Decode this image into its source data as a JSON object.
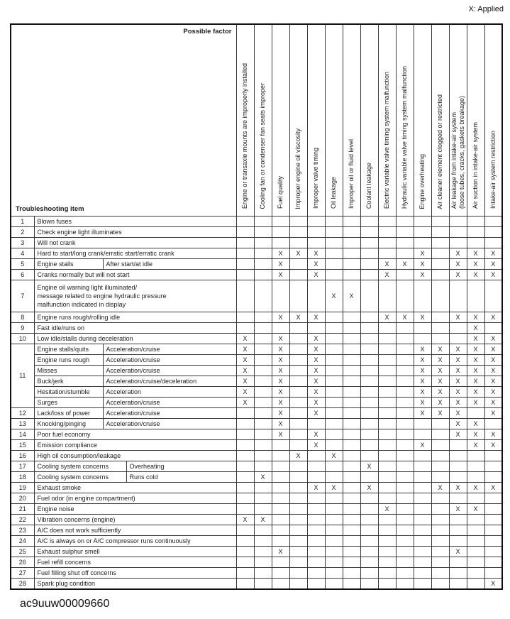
{
  "page": {
    "legend": "X: Applied",
    "caption": "ac9uuw00009660"
  },
  "table": {
    "corner": {
      "top_label": "Possible factor",
      "bottom_label": "Troubleshooting item"
    },
    "mark": "X",
    "factors": [
      {
        "label": "Engine or transaxle mounts are improperly installed"
      },
      {
        "label": "Cooling fan or condenser fan seats improper"
      },
      {
        "label": "Fuel quality"
      },
      {
        "label": "Improper engine oil viscosity"
      },
      {
        "label": "Improper valve timing"
      },
      {
        "label": "Oil leakage"
      },
      {
        "label": "Improper oil or fluid level"
      },
      {
        "label": "Coolant leakage"
      },
      {
        "label": "Electric variable valve timing system malfunction"
      },
      {
        "label": "Hydraulic variable valve timing system malfunction"
      },
      {
        "label": "Engine overheating"
      },
      {
        "label": "Air cleaner element clogged or restricted"
      },
      {
        "label": "Air leakage from intake-air system\n(loose tubes, cracks, gaskets breakage)"
      },
      {
        "label": "Air suction in intake-air system"
      },
      {
        "label": "Intake-air system restriction"
      }
    ],
    "rows": [
      {
        "num": "1",
        "item": "Blown fuses",
        "split": "none",
        "marks": []
      },
      {
        "num": "2",
        "item": "Check engine light illuminates",
        "split": "none",
        "marks": []
      },
      {
        "num": "3",
        "item": "Will not crank",
        "split": "none",
        "marks": []
      },
      {
        "num": "4",
        "item": "Hard to start/long crank/erratic start/erratic crank",
        "split": "none",
        "marks": [
          3,
          4,
          5,
          11,
          13,
          14,
          15
        ]
      },
      {
        "num": "5",
        "item": "Engine stalls",
        "sub": "After start/at idle",
        "split": "narrow",
        "marks": [
          3,
          5,
          9,
          10,
          11,
          13,
          14,
          15
        ]
      },
      {
        "num": "6",
        "item": "Cranks normally but will not start",
        "split": "none",
        "marks": [
          3,
          5,
          9,
          11,
          13,
          14,
          15
        ]
      },
      {
        "num": "7",
        "item": "Engine oil warning light illuminated/\nmessage related to engine hydraulic pressure\nmalfunction indicated in display",
        "split": "none",
        "tall": true,
        "marks": [
          6,
          7
        ]
      },
      {
        "num": "8",
        "item": "Engine runs rough/rolling idle",
        "split": "none",
        "marks": [
          3,
          4,
          5,
          9,
          10,
          11,
          13,
          14,
          15
        ]
      },
      {
        "num": "9",
        "item": "Fast idle/runs on",
        "split": "none",
        "marks": [
          14
        ]
      },
      {
        "num": "10",
        "item": "Low idle/stalls during deceleration",
        "split": "none",
        "marks": [
          1,
          3,
          5,
          14,
          15
        ]
      },
      {
        "num": "11",
        "num_rowspan": 6,
        "item": "Engine stalls/quits",
        "sub": "Acceleration/cruise",
        "split": "narrow",
        "marks": [
          1,
          3,
          5,
          11,
          12,
          13,
          14,
          15
        ]
      },
      {
        "no_num": true,
        "item": "Engine runs rough",
        "sub": "Acceleration/cruise",
        "split": "narrow",
        "marks": [
          1,
          3,
          5,
          11,
          12,
          13,
          14,
          15
        ]
      },
      {
        "no_num": true,
        "item": "Misses",
        "sub": "Acceleration/cruise",
        "split": "narrow",
        "marks": [
          1,
          3,
          5,
          11,
          12,
          13,
          14,
          15
        ]
      },
      {
        "no_num": true,
        "item": "Buck/jerk",
        "sub": "Acceleration/cruise/deceleration",
        "split": "narrow",
        "marks": [
          1,
          3,
          5,
          11,
          12,
          13,
          14,
          15
        ]
      },
      {
        "no_num": true,
        "item": "Hesitation/stumble",
        "sub": "Acceleration",
        "split": "narrow",
        "marks": [
          1,
          3,
          5,
          11,
          12,
          13,
          14,
          15
        ]
      },
      {
        "no_num": true,
        "item": "Surges",
        "sub": "Acceleration/cruise",
        "split": "narrow",
        "marks": [
          1,
          3,
          5,
          11,
          12,
          13,
          14,
          15
        ]
      },
      {
        "num": "12",
        "item": "Lack/loss of power",
        "sub": "Acceleration/cruise",
        "split": "narrow",
        "marks": [
          3,
          5,
          11,
          12,
          13,
          15
        ]
      },
      {
        "num": "13",
        "item": "Knocking/pinging",
        "sub": "Acceleration/cruise",
        "split": "narrow",
        "marks": [
          3,
          13,
          14
        ]
      },
      {
        "num": "14",
        "item": "Poor fuel economy",
        "split": "none",
        "marks": [
          3,
          5,
          13,
          14,
          15
        ]
      },
      {
        "num": "15",
        "item": "Emission compliance",
        "split": "none",
        "marks": [
          5,
          11,
          14,
          15
        ]
      },
      {
        "num": "16",
        "item": "High oil consumption/leakage",
        "split": "none",
        "marks": [
          4,
          6
        ]
      },
      {
        "num": "17",
        "item": "Cooling system concerns",
        "sub": "Overheating",
        "split": "wide",
        "marks": [
          8
        ]
      },
      {
        "num": "18",
        "item": "Cooling system concerns",
        "sub": "Runs cold",
        "split": "wide",
        "marks": [
          2
        ]
      },
      {
        "num": "19",
        "item": "Exhaust smoke",
        "split": "none",
        "marks": [
          5,
          6,
          8,
          12,
          13,
          14,
          15
        ]
      },
      {
        "num": "20",
        "item": "Fuel odor (in engine compartment)",
        "split": "none",
        "marks": []
      },
      {
        "num": "21",
        "item": "Engine noise",
        "split": "none",
        "marks": [
          9,
          13,
          14
        ]
      },
      {
        "num": "22",
        "item": "Vibration concerns (engine)",
        "split": "none",
        "marks": [
          1,
          2
        ]
      },
      {
        "num": "23",
        "item": "A/C does not work sufficiently",
        "split": "none",
        "marks": []
      },
      {
        "num": "24",
        "item": "A/C is always on or A/C compressor runs continuously",
        "split": "none",
        "marks": []
      },
      {
        "num": "25",
        "item": "Exhaust sulphur smell",
        "split": "none",
        "marks": [
          3,
          13
        ]
      },
      {
        "num": "26",
        "item": "Fuel refill concerns",
        "split": "none",
        "marks": []
      },
      {
        "num": "27",
        "item": "Fuel filling shut off concerns",
        "split": "none",
        "marks": []
      },
      {
        "num": "28",
        "item": "Spark plug condition",
        "split": "none",
        "marks": [
          15
        ]
      }
    ]
  }
}
